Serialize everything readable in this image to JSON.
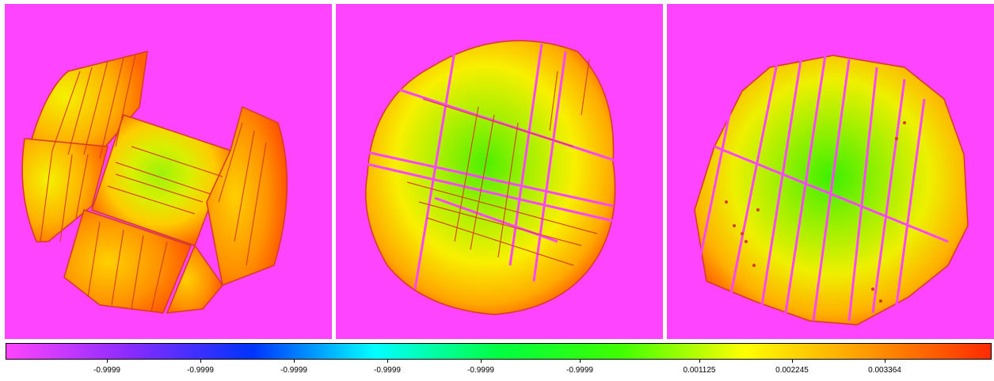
{
  "colors": {
    "background": "#ff44ff",
    "seam": "#ff44ff",
    "stripe": "#d63a1e",
    "colormap": [
      "#ff44ff",
      "#8a2bff",
      "#0033ff",
      "#00ffff",
      "#00ff40",
      "#40ff00",
      "#ffff00",
      "#ff9900",
      "#ff2a00"
    ]
  },
  "panels": [
    {
      "name": "image-panel-left"
    },
    {
      "name": "image-panel-center"
    },
    {
      "name": "image-panel-right"
    }
  ],
  "colorbar": {
    "tick_labels": [
      "-0.9999",
      "-0.9999",
      "-0.9999",
      "-0.9999",
      "-0.9999",
      "-0.9999",
      "0.001125",
      "0.002245",
      "0.003364"
    ]
  }
}
